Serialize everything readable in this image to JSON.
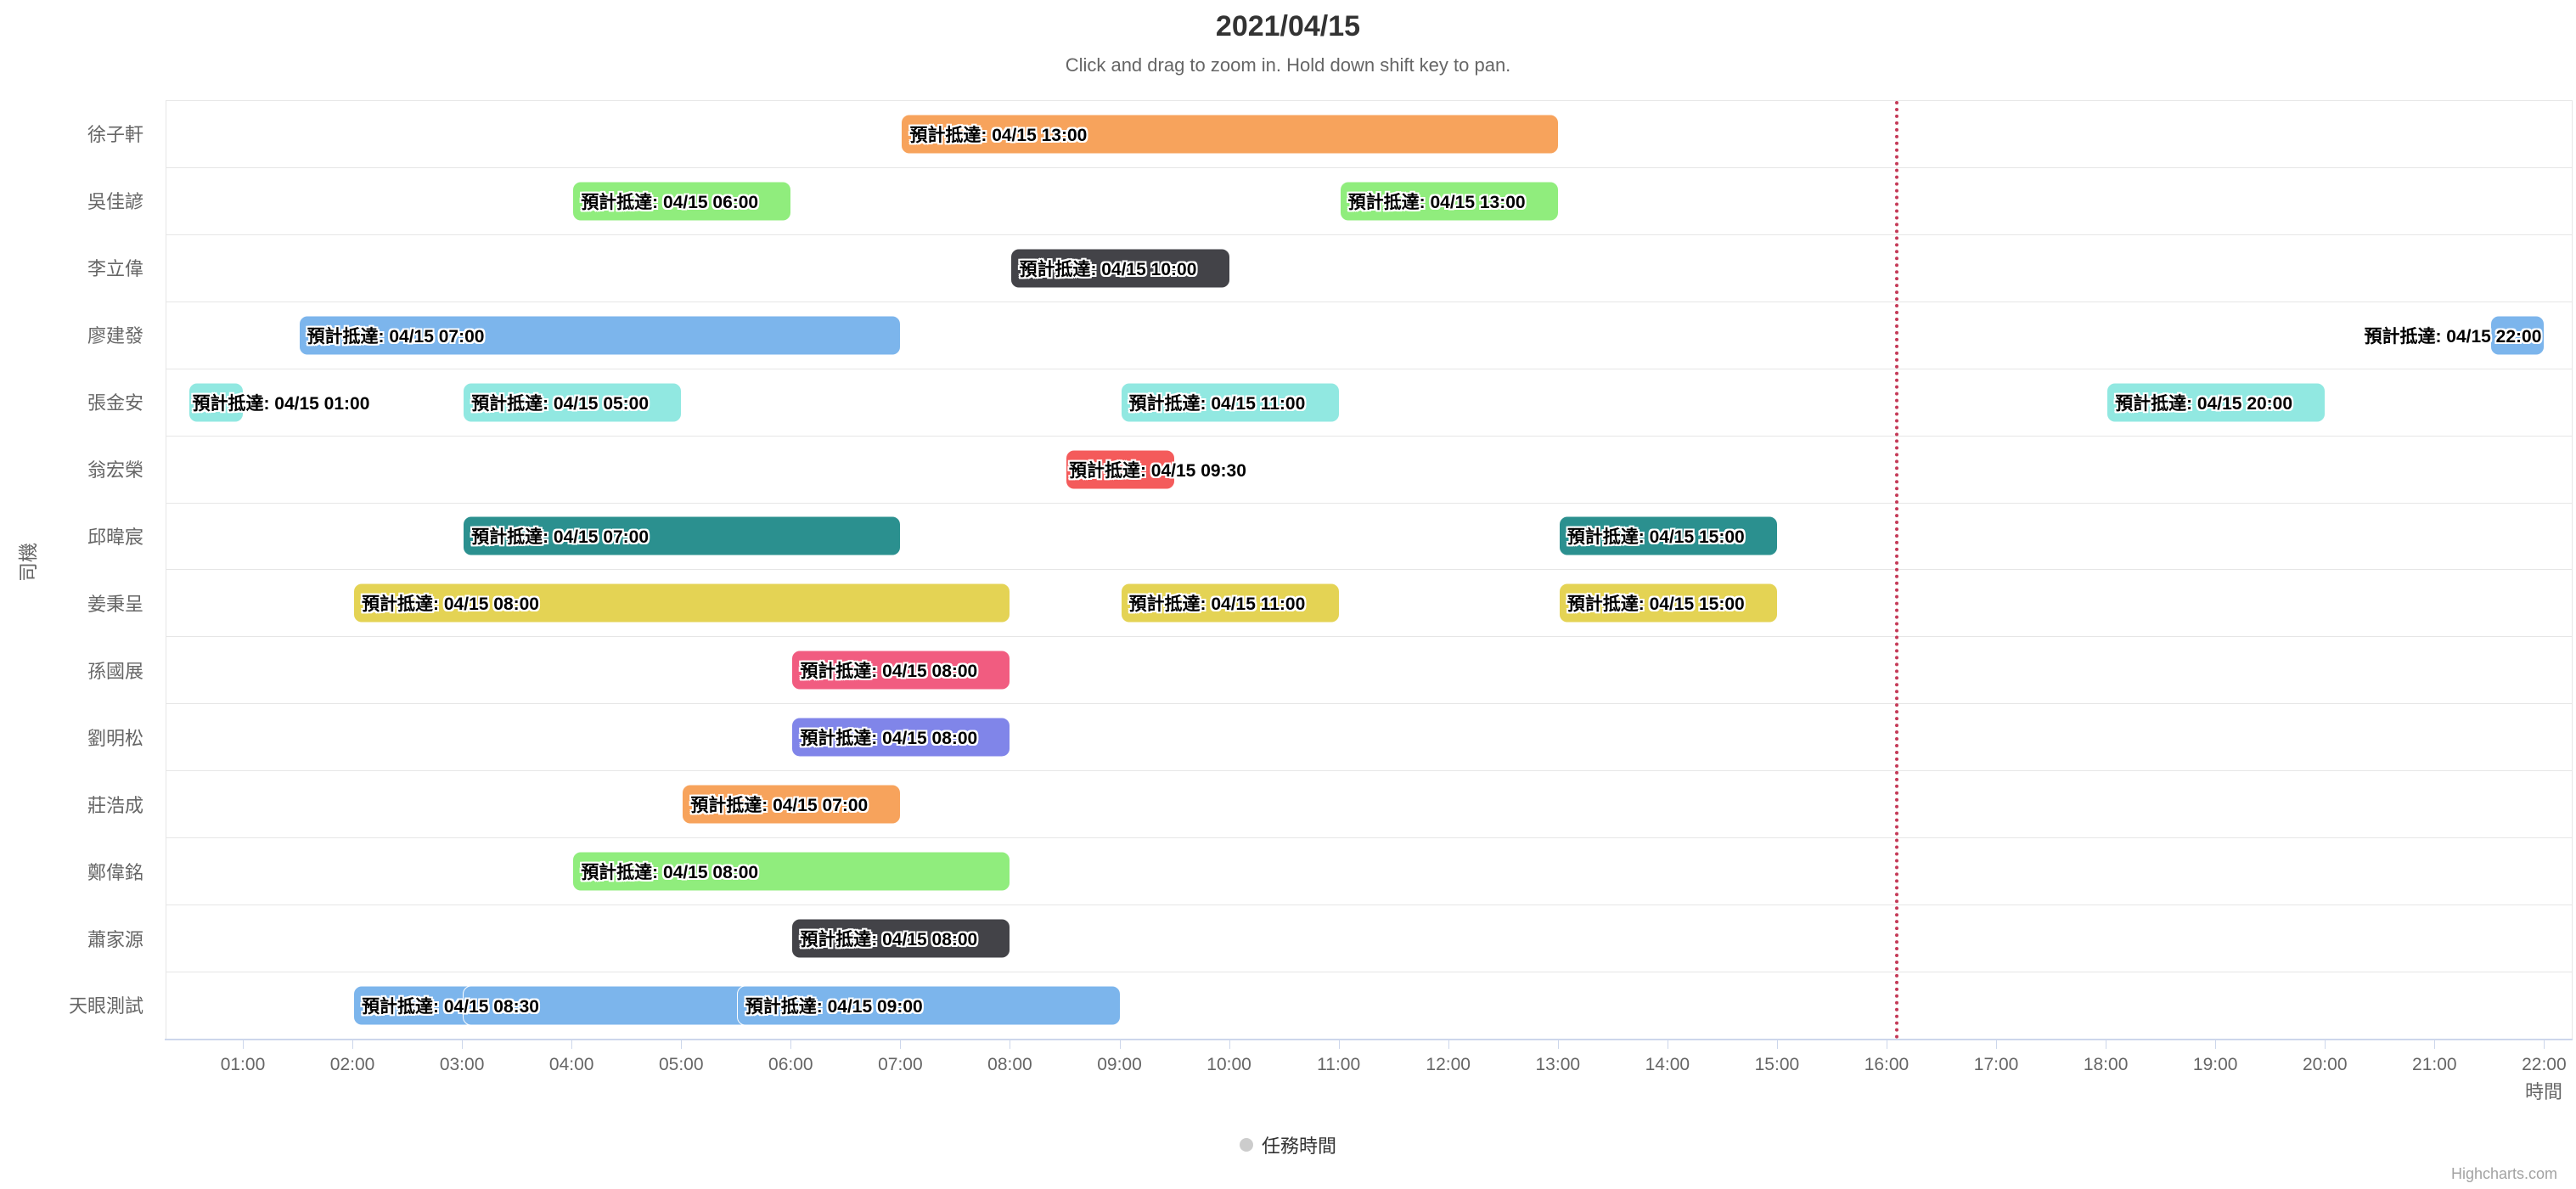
{
  "title": "2021/04/15",
  "subtitle": "Click and drag to zoom in. Hold down shift key to pan.",
  "legend": {
    "label": "任務時間",
    "marker_color": "#cccccc"
  },
  "credits": "Highcharts.com",
  "chart_data": {
    "type": "xrange",
    "title": "2021/04/15",
    "label_prefix": "預計抵達: 04/15 ",
    "x_axis": {
      "title": "時間",
      "min_hours": 0.295,
      "max_hours": 22.245,
      "tick_labels": [
        "01:00",
        "02:00",
        "03:00",
        "04:00",
        "05:00",
        "06:00",
        "07:00",
        "08:00",
        "09:00",
        "10:00",
        "11:00",
        "12:00",
        "13:00",
        "14:00",
        "15:00",
        "16:00",
        "17:00",
        "18:00",
        "19:00",
        "20:00",
        "21:00",
        "22:00"
      ]
    },
    "y_axis": {
      "title": "司機",
      "categories": [
        "徐子軒",
        "吳佳諺",
        "李立偉",
        "廖建發",
        "張金安",
        "翁宏榮",
        "邱暐宸",
        "姜秉呈",
        "孫國展",
        "劉明松",
        "莊浩成",
        "鄭偉銘",
        "蕭家源",
        "天眼測試"
      ]
    },
    "plot_line": {
      "hours": 16.07,
      "color": "#c43a57",
      "style": "dotted"
    },
    "grid_color": "#e6e6e6",
    "axis_color": "#ccd6eb",
    "tasks": [
      {
        "driver": "徐子軒",
        "start": "07:00",
        "end": "13:00",
        "arrival": "13:00",
        "color": "#f7a35c",
        "label_mode": "inside"
      },
      {
        "driver": "吳佳諺",
        "start": "04:00",
        "end": "06:00",
        "arrival": "06:00",
        "color": "#90ed7d",
        "label_mode": "inside"
      },
      {
        "driver": "吳佳諺",
        "start": "11:00",
        "end": "13:00",
        "arrival": "13:00",
        "color": "#90ed7d",
        "label_mode": "inside"
      },
      {
        "driver": "李立偉",
        "start": "08:00",
        "end": "10:00",
        "arrival": "10:00",
        "color": "#434348",
        "label_mode": "inside"
      },
      {
        "driver": "廖建發",
        "start": "01:30",
        "end": "07:00",
        "arrival": "07:00",
        "color": "#7cb5ec",
        "label_mode": "inside"
      },
      {
        "driver": "廖建發",
        "start": "21:30",
        "end": "22:00",
        "arrival": "22:00",
        "color": "#7cb5ec",
        "label_mode": "overflow-left"
      },
      {
        "driver": "張金安",
        "start": "00:30",
        "end": "01:00",
        "arrival": "01:00",
        "color": "#91e8e1",
        "label_mode": "overflow-right"
      },
      {
        "driver": "張金安",
        "start": "03:00",
        "end": "05:00",
        "arrival": "05:00",
        "color": "#91e8e1",
        "label_mode": "inside"
      },
      {
        "driver": "張金安",
        "start": "09:00",
        "end": "11:00",
        "arrival": "11:00",
        "color": "#91e8e1",
        "label_mode": "inside"
      },
      {
        "driver": "張金安",
        "start": "18:00",
        "end": "20:00",
        "arrival": "20:00",
        "color": "#91e8e1",
        "label_mode": "inside"
      },
      {
        "driver": "翁宏榮",
        "start": "08:30",
        "end": "09:30",
        "arrival": "09:30",
        "color": "#f45b5b",
        "label_mode": "overflow-right"
      },
      {
        "driver": "邱暐宸",
        "start": "03:00",
        "end": "07:00",
        "arrival": "07:00",
        "color": "#2b908f",
        "label_mode": "inside"
      },
      {
        "driver": "邱暐宸",
        "start": "13:00",
        "end": "15:00",
        "arrival": "15:00",
        "color": "#2b908f",
        "label_mode": "inside"
      },
      {
        "driver": "姜秉呈",
        "start": "02:00",
        "end": "08:00",
        "arrival": "08:00",
        "color": "#e4d354",
        "label_mode": "inside"
      },
      {
        "driver": "姜秉呈",
        "start": "09:00",
        "end": "11:00",
        "arrival": "11:00",
        "color": "#e4d354",
        "label_mode": "inside"
      },
      {
        "driver": "姜秉呈",
        "start": "13:00",
        "end": "15:00",
        "arrival": "15:00",
        "color": "#e4d354",
        "label_mode": "inside"
      },
      {
        "driver": "孫國展",
        "start": "06:00",
        "end": "08:00",
        "arrival": "08:00",
        "color": "#f15c80",
        "label_mode": "inside"
      },
      {
        "driver": "劉明松",
        "start": "06:00",
        "end": "08:00",
        "arrival": "08:00",
        "color": "#8085e9",
        "label_mode": "inside"
      },
      {
        "driver": "莊浩成",
        "start": "05:00",
        "end": "07:00",
        "arrival": "07:00",
        "color": "#f7a35c",
        "label_mode": "inside"
      },
      {
        "driver": "鄭偉銘",
        "start": "04:00",
        "end": "08:00",
        "arrival": "08:00",
        "color": "#90ed7d",
        "label_mode": "inside"
      },
      {
        "driver": "蕭家源",
        "start": "06:00",
        "end": "08:00",
        "arrival": "08:00",
        "color": "#434348",
        "label_mode": "inside"
      },
      {
        "driver": "天眼測試",
        "start": "02:00",
        "end": "08:30",
        "arrival": "08:30",
        "color": "#7cb5ec",
        "label_mode": "inside"
      },
      {
        "driver": "天眼測試",
        "start": "03:00",
        "end": "08:00",
        "arrival": "08:00",
        "color": "#7cb5ec",
        "label_mode": "hidden"
      },
      {
        "driver": "天眼測試",
        "start": "05:30",
        "end": "09:00",
        "arrival": "09:00",
        "color": "#7cb5ec",
        "label_mode": "inside"
      }
    ]
  }
}
